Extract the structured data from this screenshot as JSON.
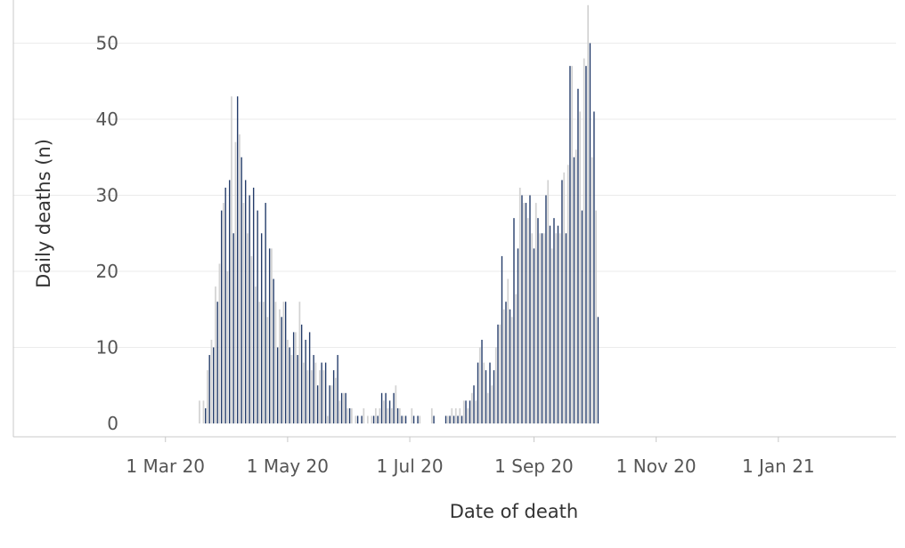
{
  "chart_data": {
    "type": "bar",
    "title": "",
    "xlabel": "Date of death",
    "ylabel": "Daily deaths (n)",
    "ylim": [
      0,
      55
    ],
    "x_range": [
      "2020-02-15",
      "2021-02-15"
    ],
    "grid": true,
    "y_ticks": [
      {
        "value": 0,
        "label": "0"
      },
      {
        "value": 10,
        "label": "10"
      },
      {
        "value": 20,
        "label": "20"
      },
      {
        "value": 30,
        "label": "30"
      },
      {
        "value": 40,
        "label": "40"
      },
      {
        "value": 50,
        "label": "50"
      }
    ],
    "x_ticks": [
      {
        "date": "2020-03-01",
        "label": "1 Mar 20"
      },
      {
        "date": "2020-05-01",
        "label": "1 May 20"
      },
      {
        "date": "2020-07-01",
        "label": "1 Jul 20"
      },
      {
        "date": "2020-09-01",
        "label": "1 Sep 20"
      },
      {
        "date": "2020-11-01",
        "label": "1 Nov 20"
      },
      {
        "date": "2021-01-01",
        "label": "1 Jan 21"
      }
    ],
    "bar_colors": [
      "#d3d3d3",
      "#243c6a"
    ],
    "series": [
      {
        "start_date": "2020-03-18",
        "values": [
          3,
          0,
          3,
          2,
          7,
          9,
          11,
          10,
          18,
          16,
          21,
          28,
          29,
          31,
          20,
          32,
          43,
          25,
          37,
          43,
          38,
          35,
          29,
          32,
          25,
          30,
          22,
          31,
          18,
          28,
          16,
          25,
          16,
          29,
          14,
          23,
          23,
          19,
          16,
          10,
          15,
          14,
          16,
          16,
          11,
          10,
          9,
          12,
          12,
          9,
          16,
          13,
          8,
          11,
          7,
          12,
          7,
          9,
          8,
          5,
          7,
          8,
          7,
          8,
          1,
          5,
          5,
          7,
          6,
          9,
          3,
          4,
          4,
          4,
          2,
          2,
          2,
          0,
          1,
          1,
          0,
          1,
          2,
          0,
          1,
          0,
          1,
          1,
          2,
          1,
          2,
          4,
          3,
          4,
          2,
          3,
          2,
          4,
          5,
          2,
          2,
          1,
          1,
          1,
          0,
          0,
          2,
          1,
          0,
          1,
          1,
          0,
          0,
          0,
          0,
          0,
          2,
          1,
          0,
          0,
          0,
          0,
          0,
          1,
          1,
          1,
          2,
          1,
          2,
          1,
          2,
          1,
          3,
          3,
          2,
          3,
          4,
          5,
          3,
          8,
          10,
          11,
          8,
          7,
          4,
          8,
          5,
          7,
          10,
          13,
          13,
          22,
          15,
          16,
          19,
          15,
          14,
          27,
          17,
          23,
          31,
          30,
          29,
          29,
          27,
          30,
          25,
          23,
          29,
          27,
          25,
          25,
          25,
          30,
          32,
          26,
          23,
          27,
          25,
          26,
          25,
          32,
          33,
          25,
          34,
          47,
          47,
          35,
          36,
          44,
          41,
          28,
          48,
          47,
          55,
          50,
          35,
          41,
          28,
          14
        ]
      }
    ]
  }
}
